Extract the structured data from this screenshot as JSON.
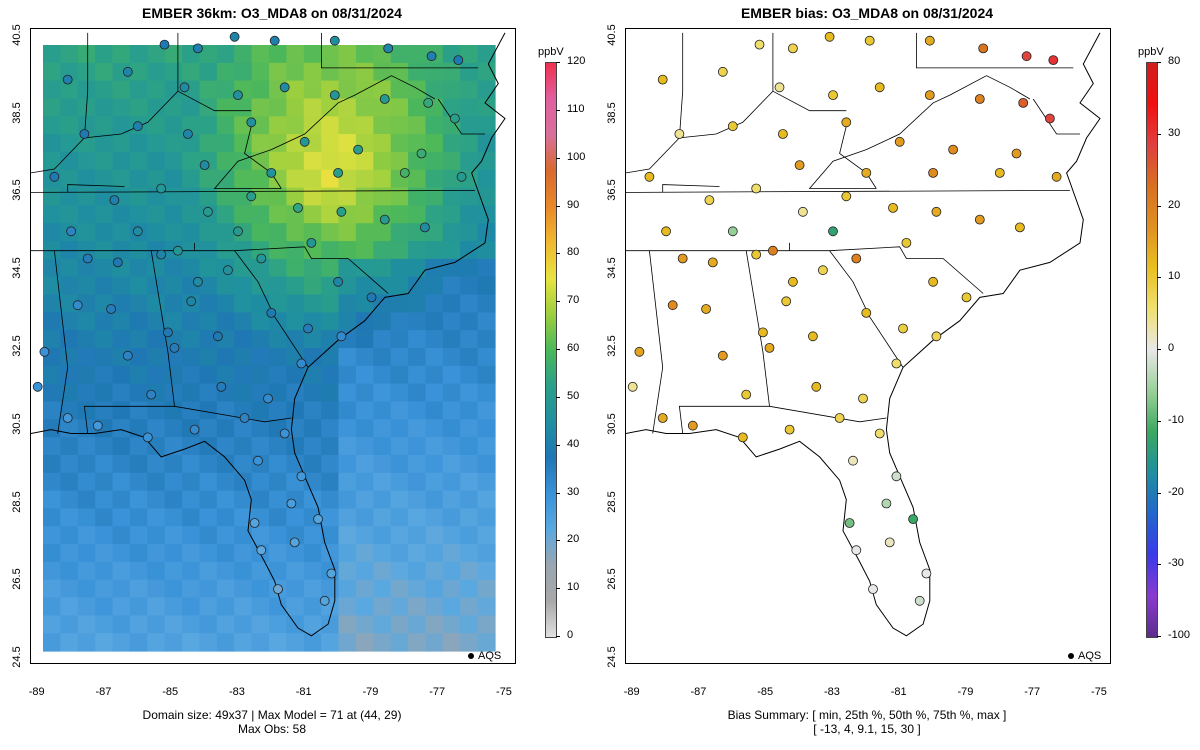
{
  "left_panel": {
    "title": "EMBER 36km: O3_MDA8 on 08/31/2024",
    "footer_line1": "Domain size: 49x37 | Max Model = 71 at (44, 29)",
    "footer_line2": "Max Obs: 58",
    "legend_label": "AQS",
    "colorbar": {
      "unit": "ppbV",
      "ticks": [
        "0",
        "10",
        "20",
        "30",
        "40",
        "50",
        "60",
        "70",
        "80",
        "90",
        "100",
        "110",
        "120"
      ]
    }
  },
  "right_panel": {
    "title": "EMBER bias: O3_MDA8 on 08/31/2024",
    "footer_line1": "Bias Summary: [ min, 25th %, 50th %, 75th %, max ]",
    "footer_line2": "[ -13,  4,  9.1,  15,  30 ]",
    "legend_label": "AQS",
    "colorbar": {
      "unit": "ppbV",
      "ticks": [
        "80",
        "30",
        "20",
        "10",
        "0",
        "-10",
        "-20",
        "-30",
        "-100"
      ]
    }
  },
  "axes": {
    "x_ticks": [
      "-89",
      "-87",
      "-85",
      "-83",
      "-81",
      "-79",
      "-77",
      "-75"
    ],
    "y_ticks": [
      "24.5",
      "26.5",
      "28.5",
      "30.5",
      "32.5",
      "34.5",
      "36.5",
      "38.5",
      "40.5"
    ],
    "lon_range": [
      -89.2,
      -74.7
    ],
    "lat_range": [
      24.4,
      40.7
    ]
  },
  "colors": {
    "ozone_scale": [
      "#e0e0e0",
      "#a8a8a8",
      "#9aa6b0",
      "#5aa8e0",
      "#3a92d8",
      "#1f77b4",
      "#1f8fa0",
      "#2aa089",
      "#4cb85a",
      "#9ccf3e",
      "#e8e340",
      "#f0b830",
      "#e8882a",
      "#d86a2f",
      "#d8709a",
      "#e060a0",
      "#f03050"
    ],
    "bias_scale": [
      "#5b2d8c",
      "#8a3ad0",
      "#3a3ae8",
      "#2266cc",
      "#1f8fa0",
      "#3aa860",
      "#9ad09a",
      "#e8e8e8",
      "#f0e070",
      "#e8c020",
      "#e09020",
      "#d87020",
      "#e04040",
      "#f01010",
      "#d02020"
    ]
  },
  "chart_data": {
    "type": "map",
    "left": {
      "title": "EMBER 36km: O3_MDA8 on 08/31/2024",
      "variable": "O3_MDA8",
      "domain_size": "49x37",
      "max_model": 71,
      "max_model_cell": [
        44,
        29
      ],
      "max_obs": 58,
      "color_range": [
        0,
        120
      ],
      "stations": [
        {
          "lon": -85.2,
          "lat": 40.3,
          "v": 38
        },
        {
          "lon": -84.2,
          "lat": 40.2,
          "v": 40
        },
        {
          "lon": -83.1,
          "lat": 40.5,
          "v": 42
        },
        {
          "lon": -81.9,
          "lat": 40.4,
          "v": 40
        },
        {
          "lon": -80.1,
          "lat": 40.4,
          "v": 45
        },
        {
          "lon": -78.5,
          "lat": 40.2,
          "v": 42
        },
        {
          "lon": -77.2,
          "lat": 40.0,
          "v": 40
        },
        {
          "lon": -76.4,
          "lat": 39.9,
          "v": 38
        },
        {
          "lon": -88.1,
          "lat": 39.4,
          "v": 40
        },
        {
          "lon": -86.3,
          "lat": 39.6,
          "v": 42
        },
        {
          "lon": -84.6,
          "lat": 39.2,
          "v": 44
        },
        {
          "lon": -83.0,
          "lat": 39.0,
          "v": 46
        },
        {
          "lon": -81.6,
          "lat": 39.2,
          "v": 44
        },
        {
          "lon": -80.1,
          "lat": 39.0,
          "v": 48
        },
        {
          "lon": -78.6,
          "lat": 38.9,
          "v": 50
        },
        {
          "lon": -77.3,
          "lat": 38.8,
          "v": 55
        },
        {
          "lon": -76.5,
          "lat": 38.4,
          "v": 52
        },
        {
          "lon": -87.6,
          "lat": 38.0,
          "v": 38
        },
        {
          "lon": -86.0,
          "lat": 38.2,
          "v": 40
        },
        {
          "lon": -84.5,
          "lat": 38.0,
          "v": 42
        },
        {
          "lon": -82.6,
          "lat": 38.3,
          "v": 46
        },
        {
          "lon": -81.0,
          "lat": 37.8,
          "v": 48
        },
        {
          "lon": -79.4,
          "lat": 37.6,
          "v": 52
        },
        {
          "lon": -77.5,
          "lat": 37.5,
          "v": 56
        },
        {
          "lon": -76.3,
          "lat": 36.9,
          "v": 50
        },
        {
          "lon": -88.5,
          "lat": 36.9,
          "v": 38
        },
        {
          "lon": -86.7,
          "lat": 36.3,
          "v": 40
        },
        {
          "lon": -85.3,
          "lat": 36.6,
          "v": 48
        },
        {
          "lon": -83.9,
          "lat": 36.0,
          "v": 50
        },
        {
          "lon": -82.6,
          "lat": 36.4,
          "v": 52
        },
        {
          "lon": -81.2,
          "lat": 36.1,
          "v": 54
        },
        {
          "lon": -79.9,
          "lat": 36.0,
          "v": 52
        },
        {
          "lon": -78.6,
          "lat": 35.8,
          "v": 50
        },
        {
          "lon": -77.4,
          "lat": 35.6,
          "v": 44
        },
        {
          "lon": -87.5,
          "lat": 34.8,
          "v": 36
        },
        {
          "lon": -86.6,
          "lat": 34.7,
          "v": 38
        },
        {
          "lon": -85.3,
          "lat": 34.9,
          "v": 42
        },
        {
          "lon": -84.2,
          "lat": 34.2,
          "v": 44
        },
        {
          "lon": -83.3,
          "lat": 34.5,
          "v": 46
        },
        {
          "lon": -82.3,
          "lat": 34.8,
          "v": 48
        },
        {
          "lon": -80.8,
          "lat": 35.2,
          "v": 48
        },
        {
          "lon": -80.0,
          "lat": 34.2,
          "v": 42
        },
        {
          "lon": -79.0,
          "lat": 33.8,
          "v": 38
        },
        {
          "lon": -87.8,
          "lat": 33.6,
          "v": 32
        },
        {
          "lon": -86.8,
          "lat": 33.5,
          "v": 36
        },
        {
          "lon": -85.1,
          "lat": 32.9,
          "v": 38
        },
        {
          "lon": -84.4,
          "lat": 33.7,
          "v": 42
        },
        {
          "lon": -82.0,
          "lat": 33.4,
          "v": 38
        },
        {
          "lon": -80.9,
          "lat": 33.0,
          "v": 36
        },
        {
          "lon": -79.9,
          "lat": 32.8,
          "v": 32
        },
        {
          "lon": -88.8,
          "lat": 32.4,
          "v": 30
        },
        {
          "lon": -86.3,
          "lat": 32.3,
          "v": 34
        },
        {
          "lon": -84.9,
          "lat": 32.5,
          "v": 36
        },
        {
          "lon": -83.6,
          "lat": 32.8,
          "v": 38
        },
        {
          "lon": -81.1,
          "lat": 32.1,
          "v": 32
        },
        {
          "lon": -88.1,
          "lat": 30.7,
          "v": 28
        },
        {
          "lon": -87.2,
          "lat": 30.5,
          "v": 28
        },
        {
          "lon": -85.7,
          "lat": 30.2,
          "v": 30
        },
        {
          "lon": -84.3,
          "lat": 30.4,
          "v": 32
        },
        {
          "lon": -82.8,
          "lat": 30.7,
          "v": 34
        },
        {
          "lon": -81.6,
          "lat": 30.3,
          "v": 30
        },
        {
          "lon": -82.4,
          "lat": 29.6,
          "v": 30
        },
        {
          "lon": -81.1,
          "lat": 29.2,
          "v": 28
        },
        {
          "lon": -82.5,
          "lat": 28.0,
          "v": 24
        },
        {
          "lon": -81.4,
          "lat": 28.5,
          "v": 26
        },
        {
          "lon": -80.6,
          "lat": 28.1,
          "v": 24
        },
        {
          "lon": -82.3,
          "lat": 27.3,
          "v": 22
        },
        {
          "lon": -81.3,
          "lat": 27.5,
          "v": 24
        },
        {
          "lon": -80.2,
          "lat": 26.7,
          "v": 24
        },
        {
          "lon": -80.4,
          "lat": 26.0,
          "v": 24
        },
        {
          "lon": -81.8,
          "lat": 26.3,
          "v": 20
        },
        {
          "lon": -89.0,
          "lat": 31.5,
          "v": 30
        },
        {
          "lon": -85.6,
          "lat": 31.3,
          "v": 34
        },
        {
          "lon": -83.5,
          "lat": 31.5,
          "v": 36
        },
        {
          "lon": -82.1,
          "lat": 31.2,
          "v": 32
        },
        {
          "lon": -80.0,
          "lat": 37.0,
          "v": 52
        },
        {
          "lon": -78.0,
          "lat": 37.0,
          "v": 58
        },
        {
          "lon": -82.0,
          "lat": 37.0,
          "v": 46
        },
        {
          "lon": -84.0,
          "lat": 37.2,
          "v": 44
        },
        {
          "lon": -83.0,
          "lat": 35.5,
          "v": 50
        },
        {
          "lon": -84.8,
          "lat": 35.0,
          "v": 48
        },
        {
          "lon": -88.0,
          "lat": 35.5,
          "v": 34
        },
        {
          "lon": -86.0,
          "lat": 35.5,
          "v": 44
        }
      ]
    },
    "right": {
      "title": "EMBER bias: O3_MDA8 on 08/31/2024",
      "variable": "O3_MDA8 bias",
      "summary_labels": [
        "min",
        "25th %",
        "50th %",
        "75th %",
        "max"
      ],
      "summary_values": [
        -13,
        4,
        9.1,
        15,
        30
      ],
      "color_range": [
        -100,
        80
      ],
      "stations": [
        {
          "lon": -85.2,
          "lat": 40.3,
          "v": 6
        },
        {
          "lon": -84.2,
          "lat": 40.2,
          "v": 8
        },
        {
          "lon": -83.1,
          "lat": 40.5,
          "v": 12
        },
        {
          "lon": -81.9,
          "lat": 40.4,
          "v": 10
        },
        {
          "lon": -80.1,
          "lat": 40.4,
          "v": 14
        },
        {
          "lon": -78.5,
          "lat": 40.2,
          "v": 22
        },
        {
          "lon": -77.2,
          "lat": 40.0,
          "v": 28
        },
        {
          "lon": -76.4,
          "lat": 39.9,
          "v": 30
        },
        {
          "lon": -88.1,
          "lat": 39.4,
          "v": 12
        },
        {
          "lon": -86.3,
          "lat": 39.6,
          "v": 8
        },
        {
          "lon": -84.6,
          "lat": 39.2,
          "v": 4
        },
        {
          "lon": -83.0,
          "lat": 39.0,
          "v": 10
        },
        {
          "lon": -81.6,
          "lat": 39.2,
          "v": 12
        },
        {
          "lon": -80.1,
          "lat": 39.0,
          "v": 16
        },
        {
          "lon": -78.6,
          "lat": 38.9,
          "v": 20
        },
        {
          "lon": -77.3,
          "lat": 38.8,
          "v": 25
        },
        {
          "lon": -76.5,
          "lat": 38.4,
          "v": 28
        },
        {
          "lon": -87.6,
          "lat": 38.0,
          "v": 4
        },
        {
          "lon": -86.0,
          "lat": 38.2,
          "v": 10
        },
        {
          "lon": -84.5,
          "lat": 38.0,
          "v": 12
        },
        {
          "lon": -82.6,
          "lat": 38.3,
          "v": 14
        },
        {
          "lon": -81.0,
          "lat": 37.8,
          "v": 16
        },
        {
          "lon": -79.4,
          "lat": 37.6,
          "v": 18
        },
        {
          "lon": -77.5,
          "lat": 37.5,
          "v": 16
        },
        {
          "lon": -76.3,
          "lat": 36.9,
          "v": 14
        },
        {
          "lon": -88.5,
          "lat": 36.9,
          "v": 12
        },
        {
          "lon": -86.7,
          "lat": 36.3,
          "v": 8
        },
        {
          "lon": -85.3,
          "lat": 36.6,
          "v": 6
        },
        {
          "lon": -83.9,
          "lat": 36.0,
          "v": 4
        },
        {
          "lon": -82.6,
          "lat": 36.4,
          "v": 10
        },
        {
          "lon": -81.2,
          "lat": 36.1,
          "v": 12
        },
        {
          "lon": -79.9,
          "lat": 36.0,
          "v": 14
        },
        {
          "lon": -78.6,
          "lat": 35.8,
          "v": 16
        },
        {
          "lon": -77.4,
          "lat": 35.6,
          "v": 12
        },
        {
          "lon": -87.5,
          "lat": 34.8,
          "v": 16
        },
        {
          "lon": -86.6,
          "lat": 34.7,
          "v": 14
        },
        {
          "lon": -85.3,
          "lat": 34.9,
          "v": 10
        },
        {
          "lon": -84.2,
          "lat": 34.2,
          "v": 12
        },
        {
          "lon": -83.3,
          "lat": 34.5,
          "v": 8
        },
        {
          "lon": -82.3,
          "lat": 34.8,
          "v": 20
        },
        {
          "lon": -80.8,
          "lat": 35.2,
          "v": 10
        },
        {
          "lon": -80.0,
          "lat": 34.2,
          "v": 12
        },
        {
          "lon": -79.0,
          "lat": 33.8,
          "v": 10
        },
        {
          "lon": -87.8,
          "lat": 33.6,
          "v": 18
        },
        {
          "lon": -86.8,
          "lat": 33.5,
          "v": 14
        },
        {
          "lon": -85.1,
          "lat": 32.9,
          "v": 12
        },
        {
          "lon": -84.4,
          "lat": 33.7,
          "v": 10
        },
        {
          "lon": -82.0,
          "lat": 33.4,
          "v": 12
        },
        {
          "lon": -80.9,
          "lat": 33.0,
          "v": 9
        },
        {
          "lon": -79.9,
          "lat": 32.8,
          "v": 8
        },
        {
          "lon": -88.8,
          "lat": 32.4,
          "v": 15
        },
        {
          "lon": -86.3,
          "lat": 32.3,
          "v": 16
        },
        {
          "lon": -84.9,
          "lat": 32.5,
          "v": 14
        },
        {
          "lon": -83.6,
          "lat": 32.8,
          "v": 12
        },
        {
          "lon": -81.1,
          "lat": 32.1,
          "v": 6
        },
        {
          "lon": -88.1,
          "lat": 30.7,
          "v": 14
        },
        {
          "lon": -87.2,
          "lat": 30.5,
          "v": 16
        },
        {
          "lon": -85.7,
          "lat": 30.2,
          "v": 12
        },
        {
          "lon": -84.3,
          "lat": 30.4,
          "v": 10
        },
        {
          "lon": -82.8,
          "lat": 30.7,
          "v": 8
        },
        {
          "lon": -81.6,
          "lat": 30.3,
          "v": 6
        },
        {
          "lon": -82.4,
          "lat": 29.6,
          "v": 2
        },
        {
          "lon": -81.1,
          "lat": 29.2,
          "v": -2
        },
        {
          "lon": -82.5,
          "lat": 28.0,
          "v": -8
        },
        {
          "lon": -81.4,
          "lat": 28.5,
          "v": -4
        },
        {
          "lon": -80.6,
          "lat": 28.1,
          "v": -12
        },
        {
          "lon": -82.3,
          "lat": 27.3,
          "v": 0
        },
        {
          "lon": -81.3,
          "lat": 27.5,
          "v": 2
        },
        {
          "lon": -80.2,
          "lat": 26.7,
          "v": 0
        },
        {
          "lon": -80.4,
          "lat": 26.0,
          "v": -2
        },
        {
          "lon": -81.8,
          "lat": 26.3,
          "v": 0
        },
        {
          "lon": -89.0,
          "lat": 31.5,
          "v": 4
        },
        {
          "lon": -85.6,
          "lat": 31.3,
          "v": 10
        },
        {
          "lon": -83.5,
          "lat": 31.5,
          "v": 12
        },
        {
          "lon": -82.1,
          "lat": 31.2,
          "v": 8
        },
        {
          "lon": -80.0,
          "lat": 37.0,
          "v": 18
        },
        {
          "lon": -78.0,
          "lat": 37.0,
          "v": 12
        },
        {
          "lon": -82.0,
          "lat": 37.0,
          "v": 14
        },
        {
          "lon": -84.0,
          "lat": 37.2,
          "v": 16
        },
        {
          "lon": -83.0,
          "lat": 35.5,
          "v": -13
        },
        {
          "lon": -84.8,
          "lat": 35.0,
          "v": 20
        },
        {
          "lon": -88.0,
          "lat": 35.5,
          "v": 12
        },
        {
          "lon": -86.0,
          "lat": 35.5,
          "v": -6
        }
      ]
    }
  }
}
